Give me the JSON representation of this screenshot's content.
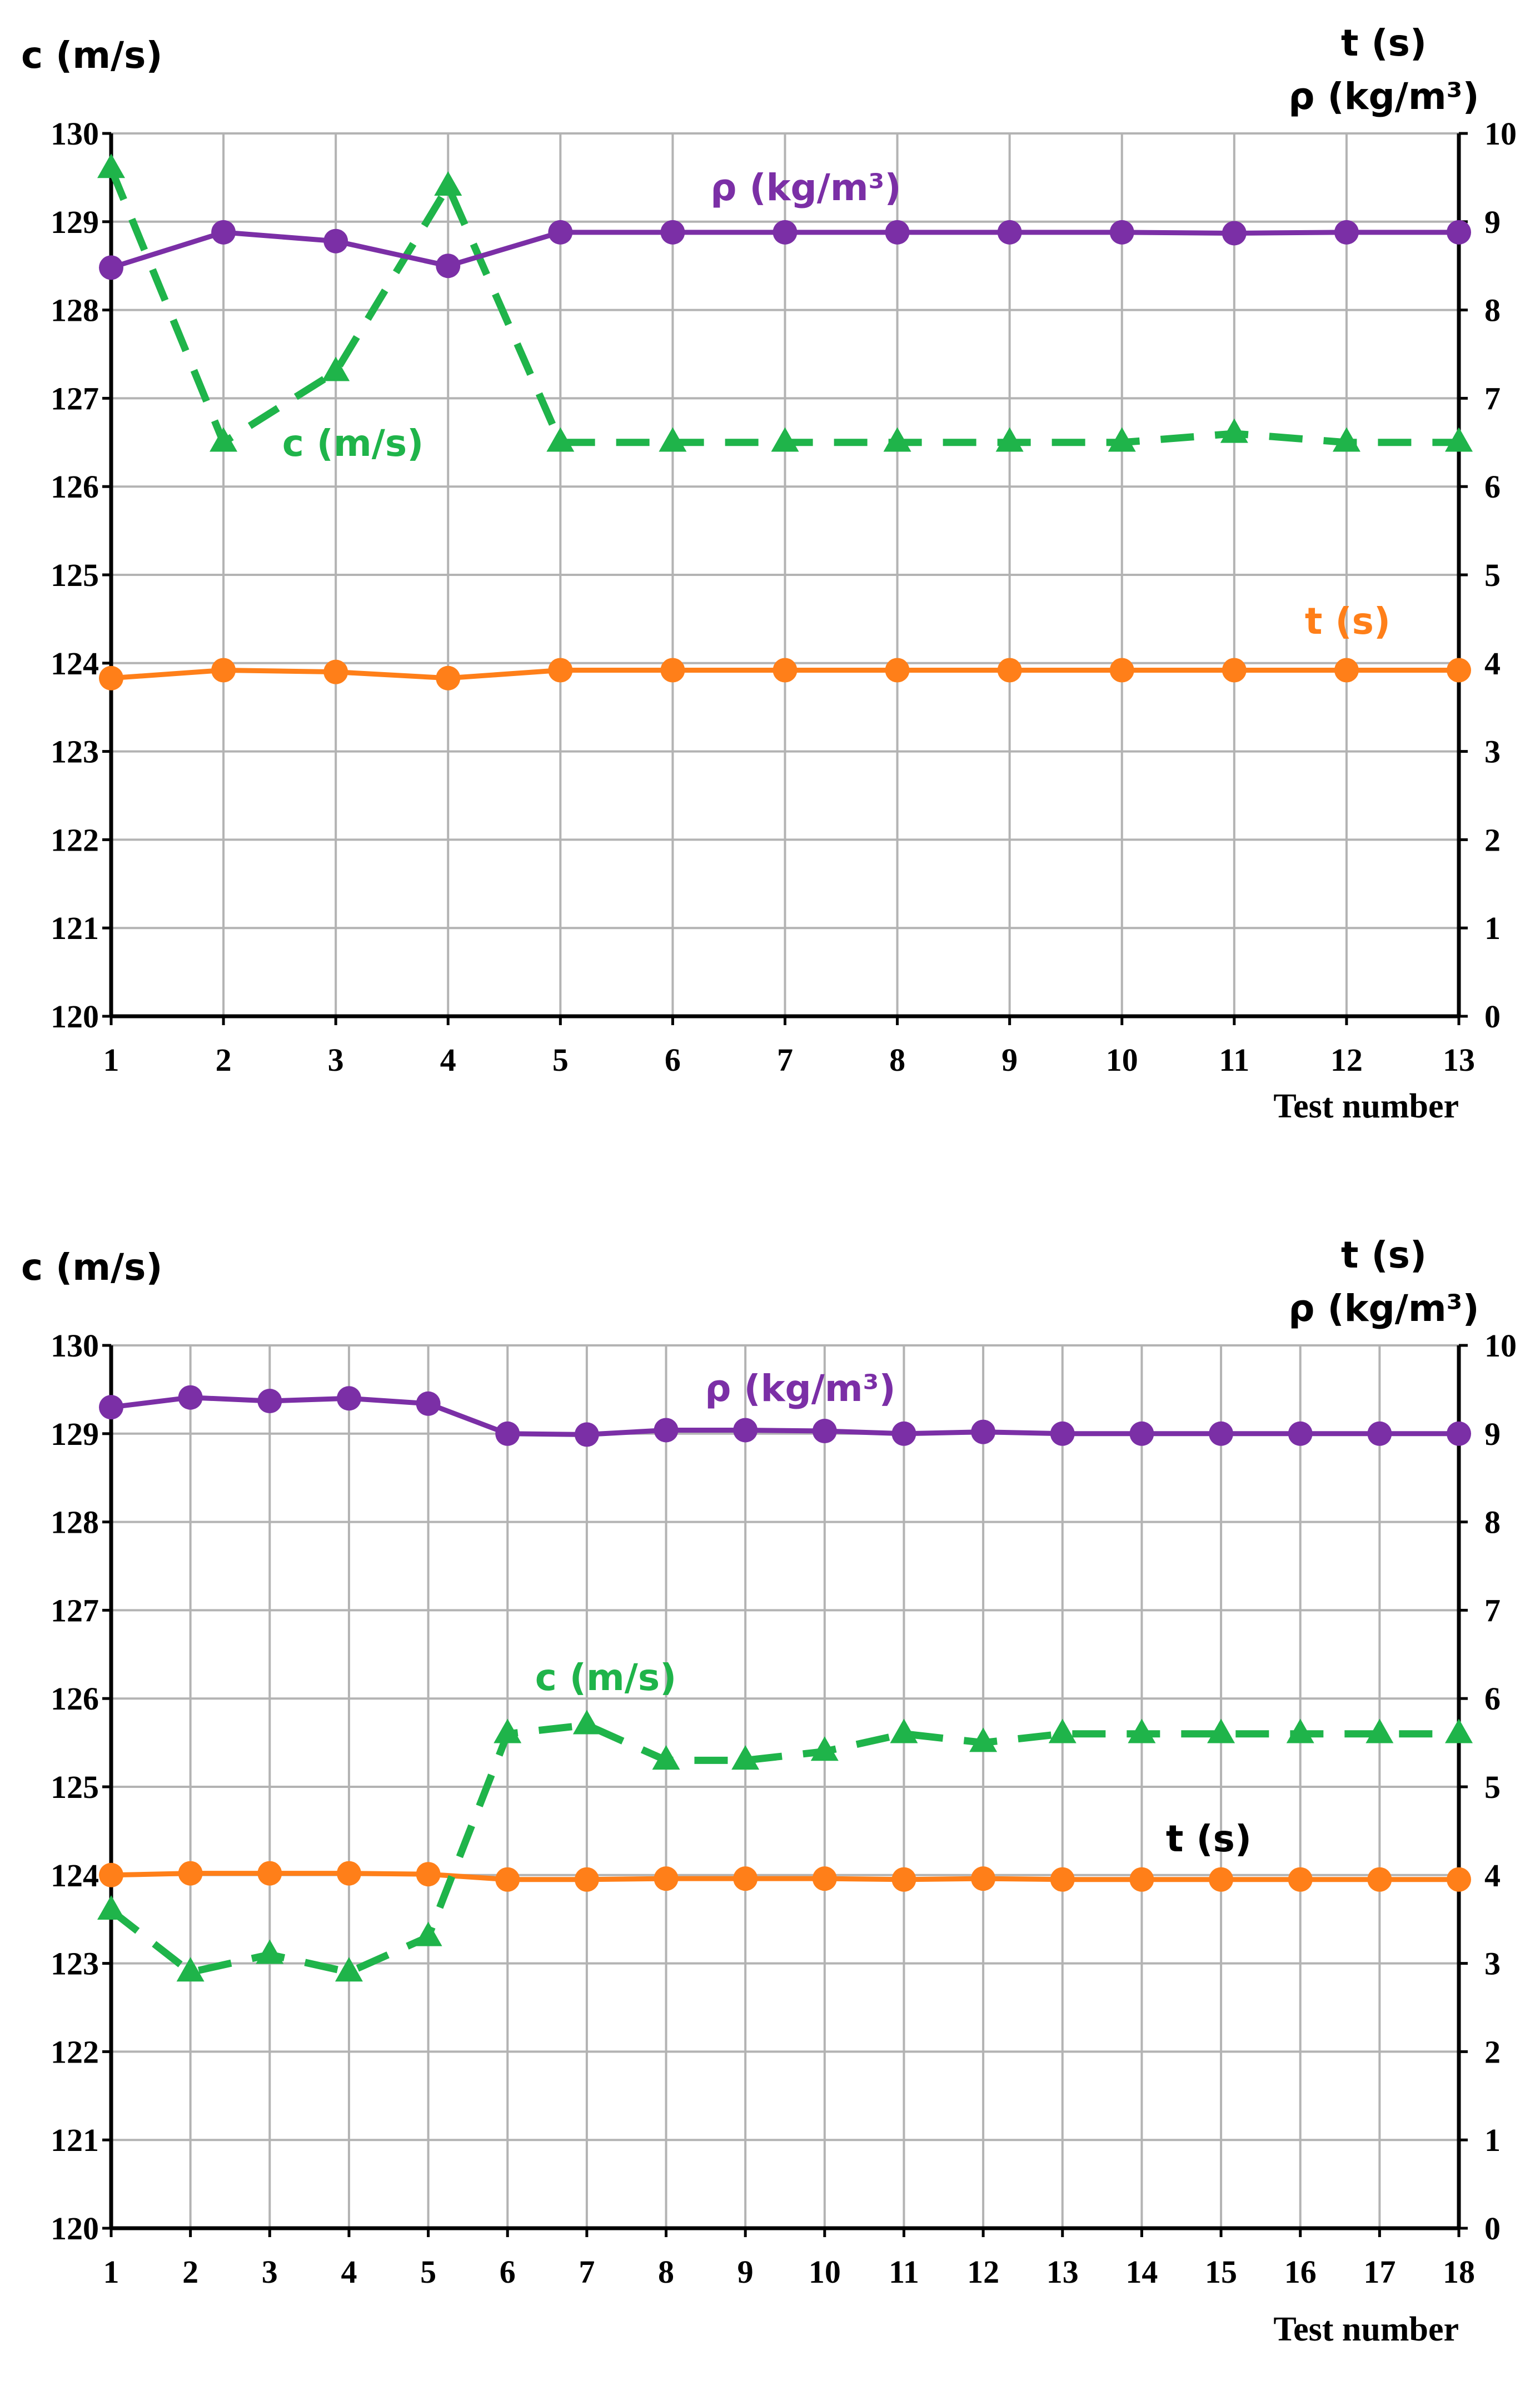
{
  "colors": {
    "rho": "#7b2fa6",
    "c": "#1fb44a",
    "t": "#ff7f19",
    "t_label_chart2": "#000000",
    "grid": "#b3b3b3",
    "axis": "#000000"
  },
  "chart_data": [
    {
      "type": "line",
      "left_axis_title": "c (m/s)",
      "right_axis_title_line1": "t (s)",
      "right_axis_title_line2": "ρ (kg/m³)",
      "xlabel": "Test number",
      "y_left_lim": [
        120,
        130
      ],
      "y_right_lim": [
        0,
        10
      ],
      "y_left_ticks": [
        120,
        121,
        122,
        123,
        124,
        125,
        126,
        127,
        128,
        129,
        130
      ],
      "y_right_ticks": [
        0,
        1,
        2,
        3,
        4,
        5,
        6,
        7,
        8,
        9,
        10
      ],
      "x": [
        1,
        2,
        3,
        4,
        5,
        6,
        7,
        8,
        9,
        10,
        11,
        12,
        13
      ],
      "grid": true,
      "series": [
        {
          "name": "ρ (kg/m³)",
          "axis": "right",
          "marker": "circle",
          "dashed": false,
          "values": [
            8.48,
            8.88,
            8.78,
            8.5,
            8.88,
            8.88,
            8.88,
            8.88,
            8.88,
            8.88,
            8.87,
            8.88,
            8.88
          ]
        },
        {
          "name": "c (m/s)",
          "axis": "left",
          "marker": "triangle",
          "dashed": true,
          "values": [
            129.6,
            126.5,
            127.3,
            129.4,
            126.5,
            126.5,
            126.5,
            126.5,
            126.5,
            126.5,
            126.6,
            126.5,
            126.5
          ]
        },
        {
          "name": "t (s)",
          "axis": "right",
          "marker": "circle",
          "dashed": false,
          "values": [
            3.83,
            3.92,
            3.9,
            3.83,
            3.92,
            3.92,
            3.92,
            3.92,
            3.92,
            3.92,
            3.92,
            3.92,
            3.92
          ]
        }
      ]
    },
    {
      "type": "line",
      "left_axis_title": "c (m/s)",
      "right_axis_title_line1": "t (s)",
      "right_axis_title_line2": "ρ (kg/m³)",
      "xlabel": "Test number",
      "y_left_lim": [
        120,
        130
      ],
      "y_right_lim": [
        0,
        10
      ],
      "y_left_ticks": [
        120,
        121,
        122,
        123,
        124,
        125,
        126,
        127,
        128,
        129,
        130
      ],
      "y_right_ticks": [
        0,
        1,
        2,
        3,
        4,
        5,
        6,
        7,
        8,
        9,
        10
      ],
      "x": [
        1,
        2,
        3,
        4,
        5,
        6,
        7,
        8,
        9,
        10,
        11,
        12,
        13,
        14,
        15,
        16,
        17,
        18
      ],
      "grid": true,
      "series": [
        {
          "name": "ρ (kg/m³)",
          "axis": "right",
          "marker": "circle",
          "dashed": false,
          "values": [
            9.3,
            9.41,
            9.37,
            9.4,
            9.34,
            9.0,
            8.99,
            9.04,
            9.04,
            9.03,
            9.0,
            9.02,
            9.0,
            9.0,
            9.0,
            9.0,
            9.0,
            9.0
          ]
        },
        {
          "name": "c (m/s)",
          "axis": "left",
          "marker": "triangle",
          "dashed": true,
          "values": [
            123.6,
            122.9,
            123.1,
            122.9,
            123.3,
            125.6,
            125.7,
            125.3,
            125.3,
            125.4,
            125.6,
            125.5,
            125.6,
            125.6,
            125.6,
            125.6,
            125.6,
            125.6
          ]
        },
        {
          "name": "t (s)",
          "axis": "right",
          "marker": "circle",
          "dashed": false,
          "values": [
            4.0,
            4.02,
            4.02,
            4.02,
            4.01,
            3.95,
            3.95,
            3.96,
            3.96,
            3.96,
            3.95,
            3.96,
            3.95,
            3.95,
            3.95,
            3.95,
            3.95,
            3.95
          ]
        }
      ]
    }
  ]
}
